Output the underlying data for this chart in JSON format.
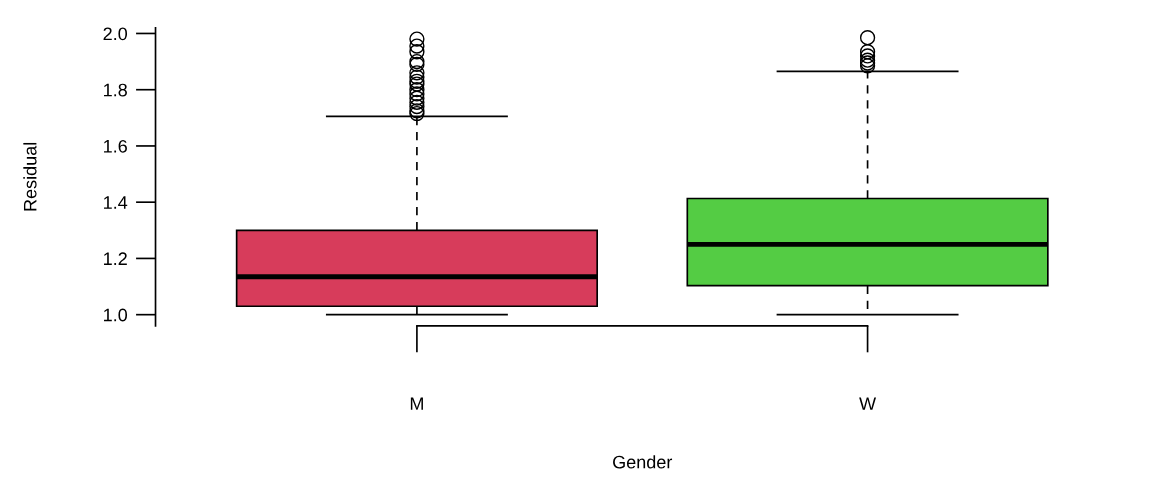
{
  "chart_data": {
    "type": "box",
    "xlabel": "Gender",
    "ylabel": "Residual",
    "categories": [
      "M",
      "W"
    ],
    "colors": [
      "#d73c5b",
      "#54cc44"
    ],
    "boxes": [
      {
        "low": 1.0,
        "q1": 1.03,
        "median": 1.135,
        "q3": 1.3,
        "high": 1.705,
        "outliers": [
          1.98,
          1.955,
          1.935,
          1.9,
          1.89,
          1.86,
          1.845,
          1.83,
          1.82,
          1.8,
          1.785,
          1.77,
          1.755,
          1.74,
          1.725,
          1.715
        ]
      },
      {
        "low": 1.0,
        "q1": 1.103,
        "median": 1.25,
        "q3": 1.413,
        "high": 1.865,
        "outliers": [
          1.985,
          1.935,
          1.92,
          1.905,
          1.895,
          1.885
        ]
      }
    ],
    "ylim": [
      0.96,
      2.02
    ],
    "yticks": [
      {
        "value": 1.0,
        "label": "1.0"
      },
      {
        "value": 1.2,
        "label": "1.2"
      },
      {
        "value": 1.4,
        "label": "1.4"
      },
      {
        "value": 1.6,
        "label": "1.6"
      },
      {
        "value": 1.8,
        "label": "1.8"
      },
      {
        "value": 2.0,
        "label": "2.0"
      }
    ],
    "grid": false
  }
}
